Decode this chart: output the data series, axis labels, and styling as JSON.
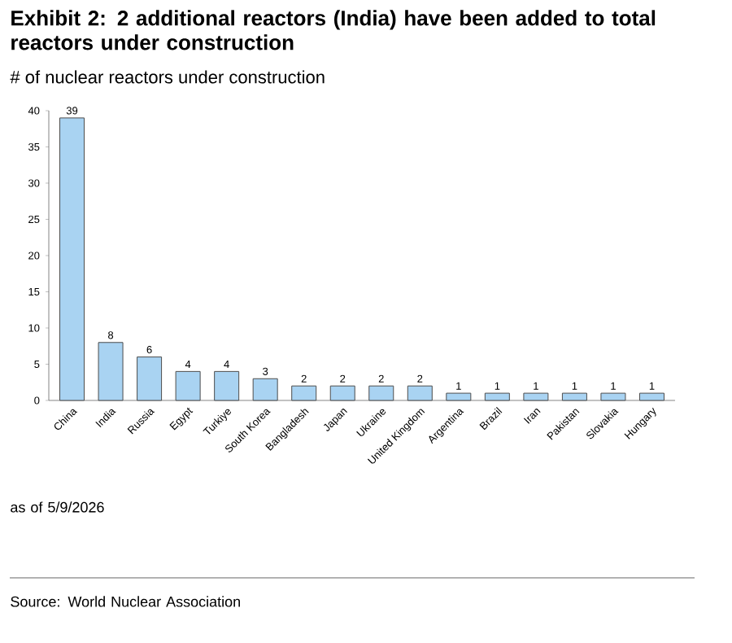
{
  "chart_data": {
    "type": "bar",
    "title": "Exhibit 2: 2 additional reactors (India) have been added to total reactors under construction",
    "subtitle": "# of nuclear reactors under construction",
    "categories": [
      "China",
      "India",
      "Russia",
      "Egypt",
      "Turkiye",
      "South Korea",
      "Bangladesh",
      "Japan",
      "Ukraine",
      "United Kingdom",
      "Argentina",
      "Brazil",
      "Iran",
      "Pakistan",
      "Slovakia",
      "Hungary"
    ],
    "values": [
      39,
      8,
      6,
      4,
      4,
      3,
      2,
      2,
      2,
      2,
      1,
      1,
      1,
      1,
      1,
      1
    ],
    "color": "#a9d3f2",
    "ylim": [
      0,
      40
    ],
    "yticks": [
      0,
      5,
      10,
      15,
      20,
      25,
      30,
      35,
      40
    ],
    "data_labels": true,
    "annotations": [
      "as of 5/9/2026",
      "Source: World Nuclear Association"
    ]
  }
}
